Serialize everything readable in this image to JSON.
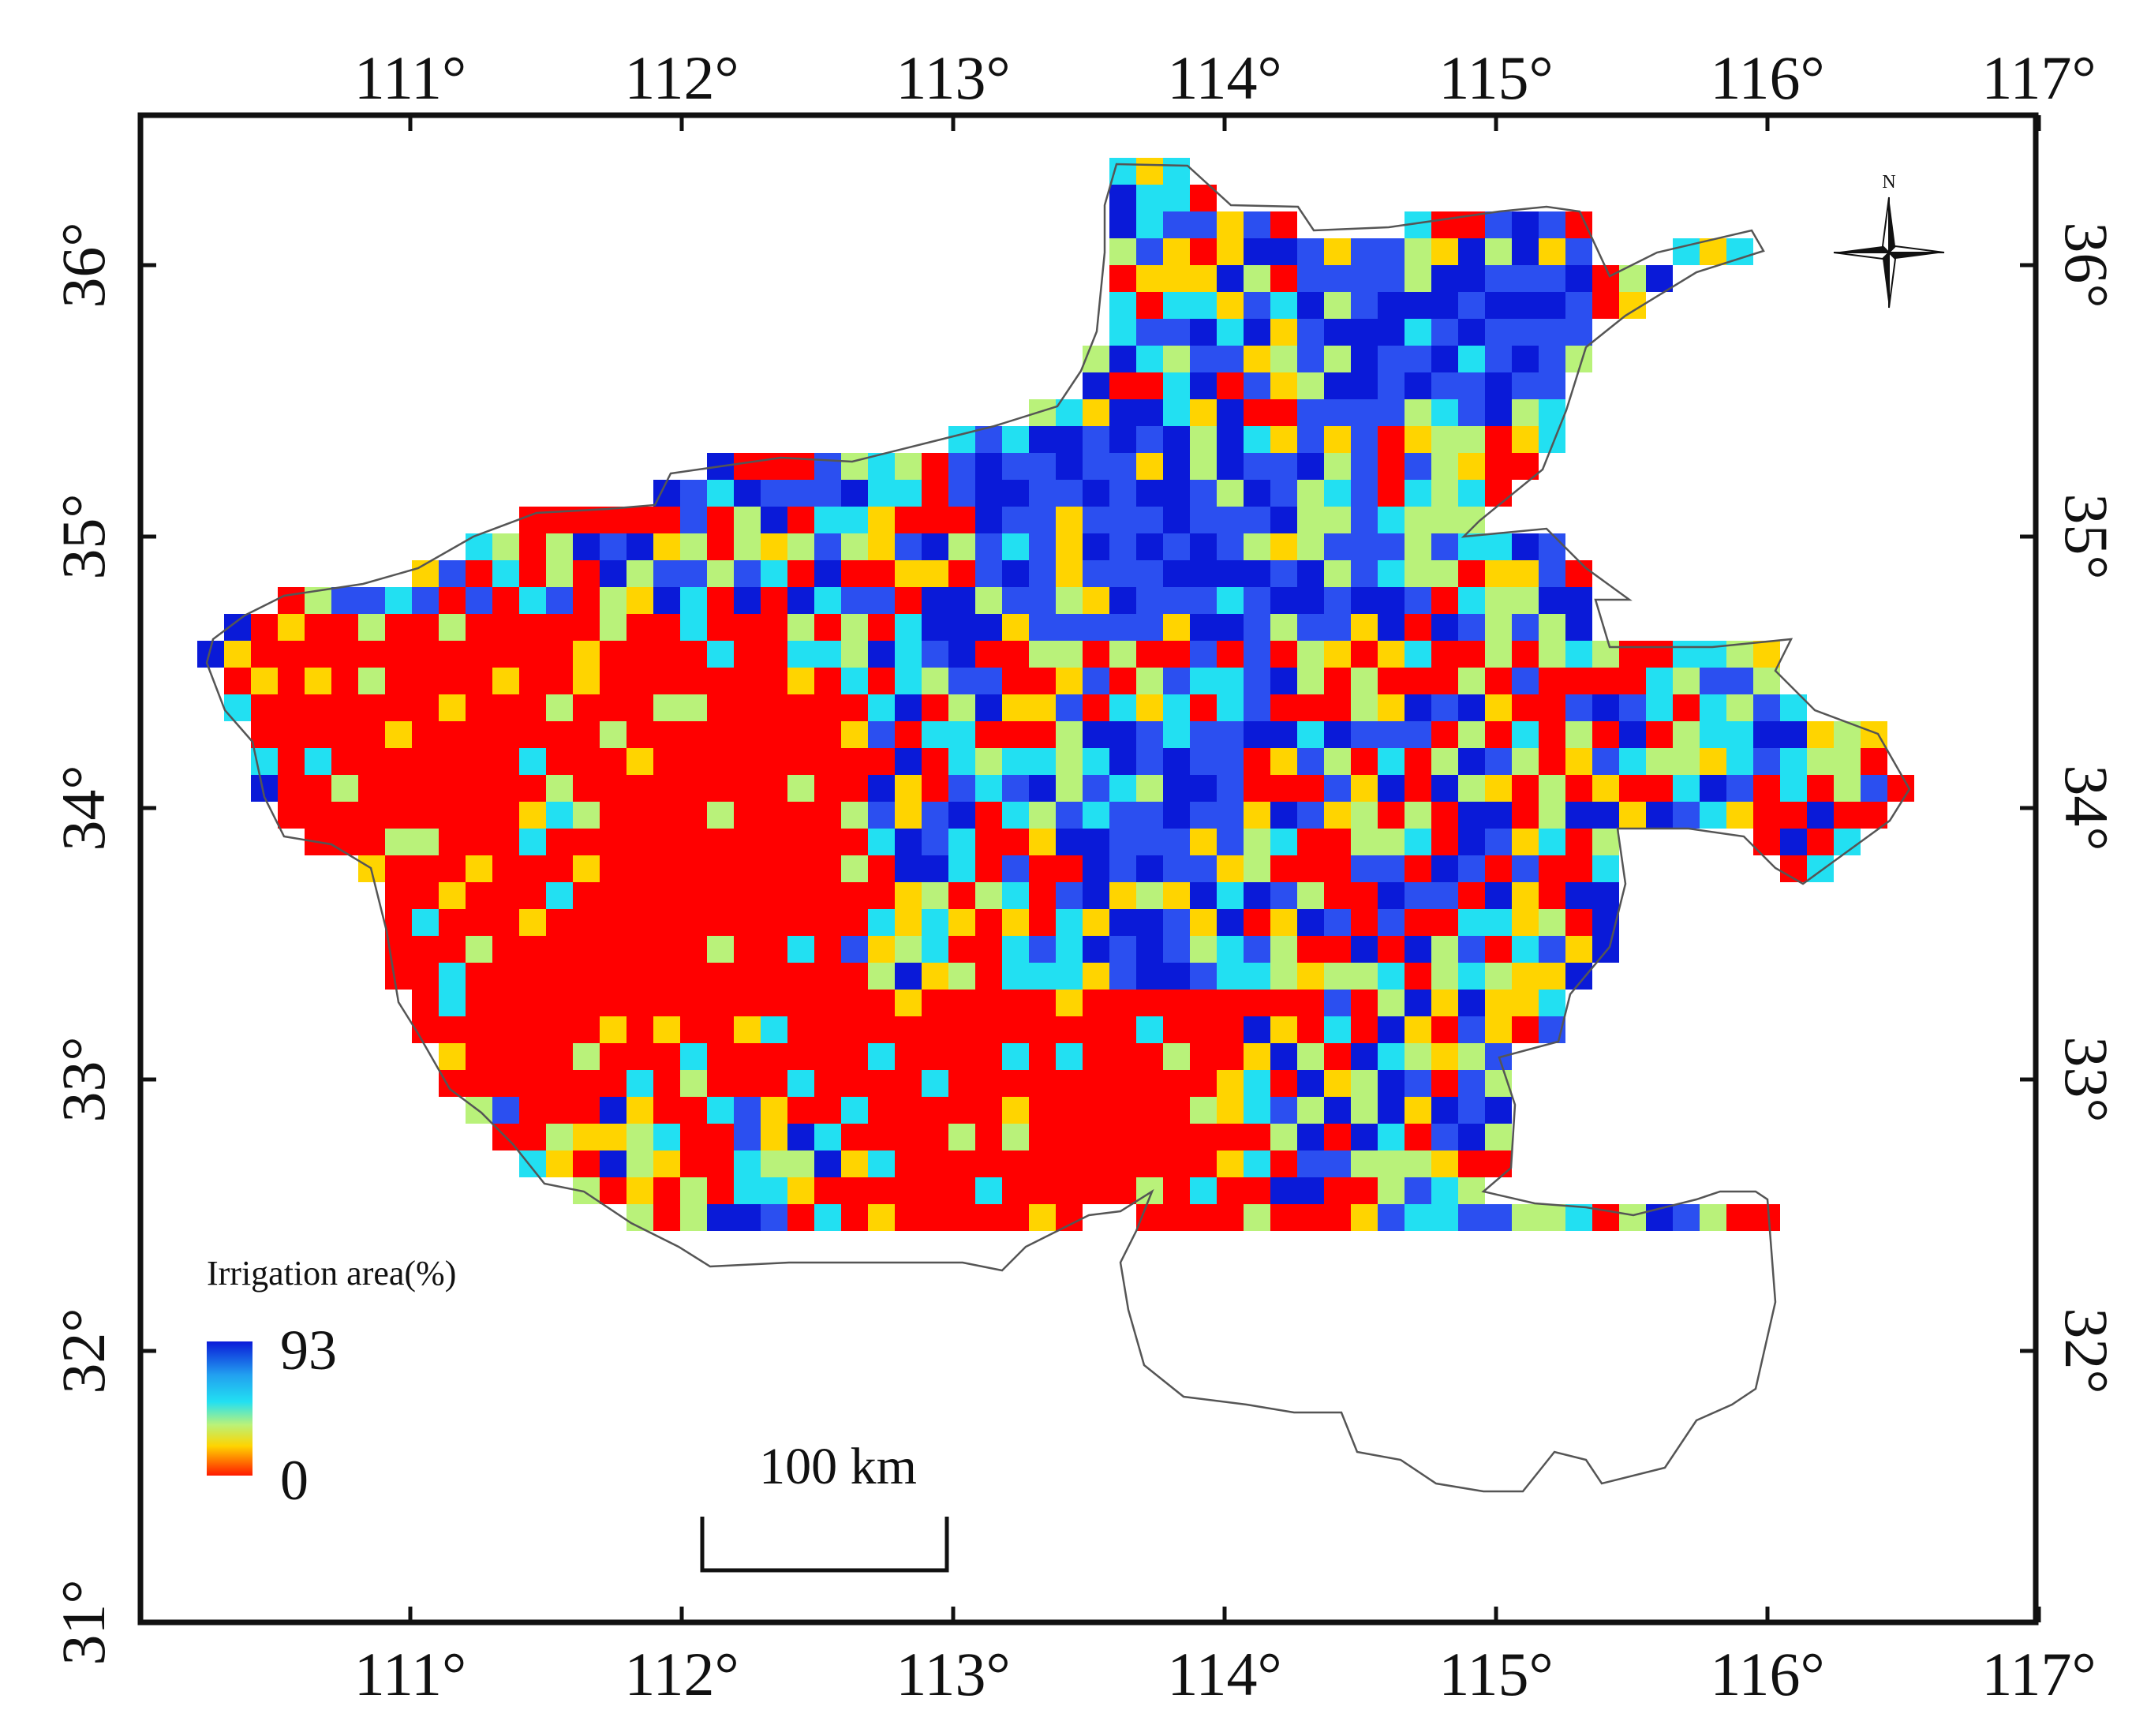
{
  "map": {
    "lon_ticks": [
      "111°",
      "112°",
      "113°",
      "114°",
      "115°",
      "116°",
      "117°"
    ],
    "lat_ticks": [
      "31°",
      "32°",
      "33°",
      "34°",
      "35°",
      "36°"
    ],
    "legend": {
      "title": "Irrigation area(%)",
      "max_label": "93",
      "min_label": "0"
    },
    "scale_bar": {
      "label": "100 km"
    },
    "north_arrow": {
      "label": "N"
    },
    "colors": {
      "low": "#ff0000",
      "mid_low": "#ffd400",
      "mid": "#b9f27a",
      "mid_high": "#22e0f2",
      "high": "#2b4ff0",
      "max": "#0a1ad8"
    }
  },
  "chart_data": {
    "type": "heatmap",
    "title": "",
    "variable": "Irrigation area(%)",
    "color_range": [
      0,
      93
    ],
    "xlim": [
      110.2,
      117.2
    ],
    "ylim": [
      31.0,
      36.5
    ],
    "x_ticks": [
      111,
      112,
      113,
      114,
      115,
      116,
      117
    ],
    "y_ticks": [
      31,
      32,
      33,
      34,
      35,
      36
    ],
    "scale_bar_km": 100,
    "regions": [
      {
        "name": "",
        "level": 0,
        "lon": [
          110.5,
          112.5
        ],
        "lat": [
          33.0,
          34.8
        ]
      },
      {
        "name": "",
        "level": 0,
        "lon": [
          112.5,
          114.0
        ],
        "lat": [
          32.5,
          33.4
        ]
      },
      {
        "name": "",
        "level": 90,
        "lon": [
          113.0,
          114.5
        ],
        "lat": [
          34.7,
          35.5
        ]
      },
      {
        "name": "",
        "level": 90,
        "lon": [
          114.2,
          115.3
        ],
        "lat": [
          35.5,
          36.1
        ]
      },
      {
        "name": "",
        "level": 85,
        "lon": [
          113.4,
          114.0
        ],
        "lat": [
          33.5,
          34.4
        ]
      }
    ]
  }
}
